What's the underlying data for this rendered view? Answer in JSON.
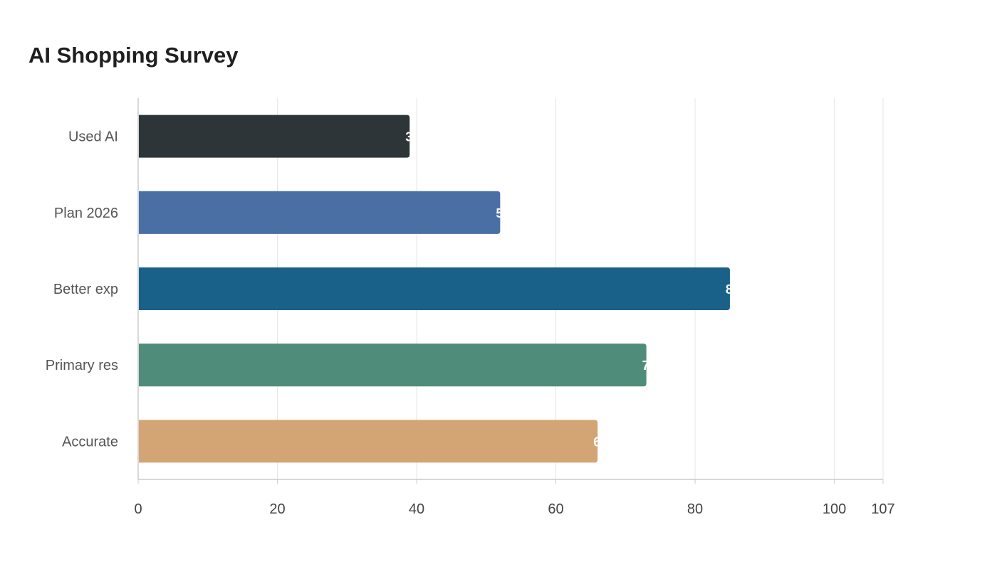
{
  "chart_data": {
    "type": "bar",
    "orientation": "horizontal",
    "title": "AI Shopping Survey",
    "categories": [
      "Used AI",
      "Plan 2026",
      "Better exp",
      "Primary res",
      "Accurate"
    ],
    "values": [
      39,
      52,
      85,
      73,
      66
    ],
    "colors": [
      "#2e3538",
      "#4a6fa5",
      "#1a6189",
      "#4f8c7a",
      "#d3a574"
    ],
    "xlim": [
      0,
      107
    ],
    "xticks": [
      0,
      20,
      40,
      60,
      80,
      100,
      107
    ],
    "grid": true,
    "xlabel": "",
    "ylabel": ""
  }
}
